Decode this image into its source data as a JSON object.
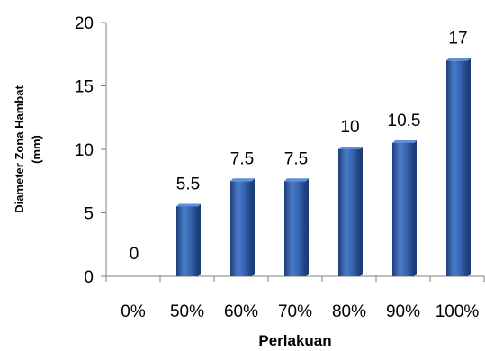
{
  "chart_data": {
    "type": "bar",
    "categories": [
      "0%",
      "50%",
      "60%",
      "70%",
      "80%",
      "90%",
      "100%"
    ],
    "values": [
      0,
      5.5,
      7.5,
      7.5,
      10,
      10.5,
      17
    ],
    "data_labels": [
      "0",
      "5.5",
      "7.5",
      "7.5",
      "10",
      "10.5",
      "17"
    ],
    "xlabel": "Perlakuan",
    "ylabel": [
      "Diameter Zona Hambat",
      "(mm)"
    ],
    "ylim": [
      0,
      20
    ],
    "yticks": [
      "0",
      "5",
      "10",
      "15",
      "20"
    ],
    "grid": false,
    "colors": {
      "bar": "#2f5fa8",
      "bar_light": "#5f8fd6",
      "bar_dark": "#1d3d78",
      "axis": "#7f7f7f"
    }
  }
}
